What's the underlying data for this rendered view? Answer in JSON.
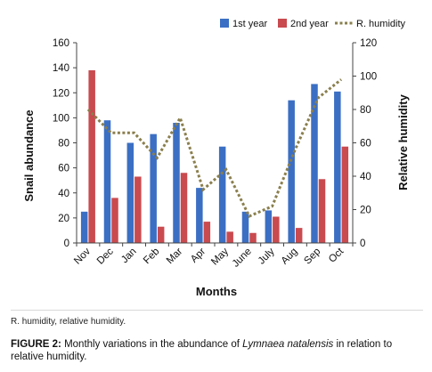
{
  "chart_data": {
    "type": "bar",
    "categories": [
      "Nov",
      "Dec",
      "Jan",
      "Feb",
      "Mar",
      "Apr",
      "May",
      "June",
      "July",
      "Aug",
      "Sep",
      "Oct"
    ],
    "series": [
      {
        "name": "1st year",
        "type": "bar",
        "axis": "left",
        "color": "#3b6fc4",
        "values": [
          25,
          98,
          80,
          87,
          96,
          44,
          77,
          25,
          26,
          114,
          127,
          121
        ]
      },
      {
        "name": "2nd year",
        "type": "bar",
        "axis": "left",
        "color": "#c94a4f",
        "values": [
          138,
          36,
          53,
          13,
          56,
          17,
          9,
          8,
          21,
          12,
          51,
          77
        ]
      },
      {
        "name": "R. humidity",
        "type": "line",
        "axis": "right",
        "color": "#8a7f4e",
        "style": "dotted",
        "values": [
          80,
          66,
          66,
          51,
          75,
          32,
          44,
          16,
          22,
          56,
          87,
          98
        ]
      }
    ],
    "xlabel": "Months",
    "ylabel": "Snail abundance",
    "y2label": "Relative humidity",
    "ylim": [
      0,
      160
    ],
    "y2lim": [
      0,
      120
    ],
    "yticks": [
      0,
      20,
      40,
      60,
      80,
      100,
      120,
      140,
      160
    ],
    "y2ticks": [
      0,
      20,
      40,
      60,
      80,
      100,
      120
    ],
    "legend_position": "top-right",
    "grid": false
  },
  "note": "R. humidity, relative humidity.",
  "caption": {
    "label": "FIGURE 2:",
    "text_before": " Monthly variations in the abundance of ",
    "species": "Lymnaea natalensis",
    "text_after": " in relation to relative humidity."
  }
}
